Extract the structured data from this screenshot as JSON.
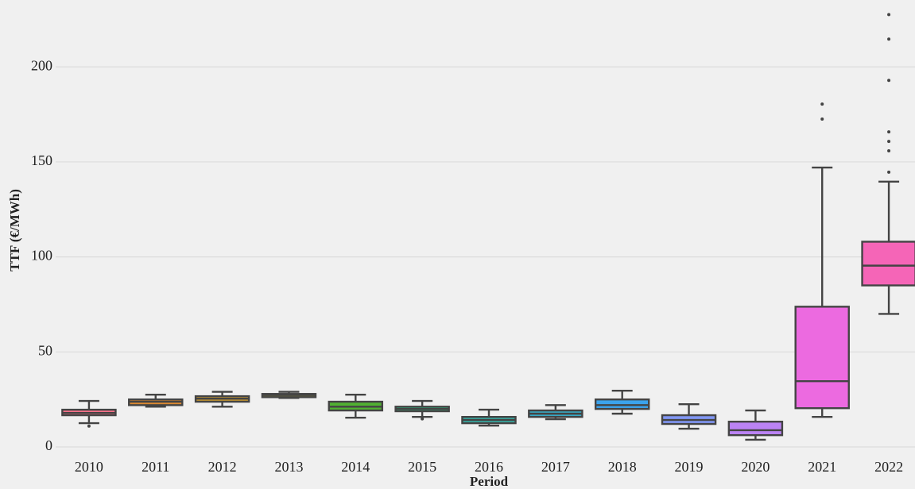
{
  "chart_data": {
    "type": "box",
    "xlabel": "Period",
    "ylabel": "TTF (€/MWh)",
    "categories": [
      "2010",
      "2011",
      "2012",
      "2013",
      "2014",
      "2015",
      "2016",
      "2017",
      "2018",
      "2019",
      "2020",
      "2021",
      "2022"
    ],
    "colors": [
      "#f77189",
      "#dc8932",
      "#c39532",
      "#a39d32",
      "#50b131",
      "#33b07a",
      "#36ada4",
      "#38a9c5",
      "#3ba3ec",
      "#8197f4",
      "#bb83f4",
      "#ec6ae0",
      "#f565b7"
    ],
    "boxes": [
      {
        "whislo": 12.5,
        "q1": 16.7,
        "median": 17.9,
        "q3": 19.6,
        "whishi": 24.2,
        "fliers": [
          11
        ]
      },
      {
        "whislo": 21.2,
        "q1": 22,
        "median": 23.8,
        "q3": 25,
        "whishi": 27.5,
        "fliers": []
      },
      {
        "whislo": 21.2,
        "q1": 23.8,
        "median": 25.4,
        "q3": 26.7,
        "whishi": 29,
        "fliers": []
      },
      {
        "whislo": 25.8,
        "q1": 26.2,
        "median": 27.3,
        "q3": 27.9,
        "whishi": 29,
        "fliers": []
      },
      {
        "whislo": 15.4,
        "q1": 19.2,
        "median": 21.2,
        "q3": 23.8,
        "whishi": 27.5,
        "fliers": []
      },
      {
        "whislo": 15.8,
        "q1": 18.8,
        "median": 20,
        "q3": 21.2,
        "whishi": 24.2,
        "fliers": [
          14.8
        ]
      },
      {
        "whislo": 11.2,
        "q1": 12.5,
        "median": 14.2,
        "q3": 15.8,
        "whishi": 19.6,
        "fliers": []
      },
      {
        "whislo": 14.6,
        "q1": 15.8,
        "median": 17.5,
        "q3": 19.2,
        "whishi": 22,
        "fliers": []
      },
      {
        "whislo": 17.5,
        "q1": 20,
        "median": 22,
        "q3": 25,
        "whishi": 29.6,
        "fliers": []
      },
      {
        "whislo": 9.6,
        "q1": 12.1,
        "median": 14.2,
        "q3": 16.7,
        "whishi": 22.5,
        "fliers": []
      },
      {
        "whislo": 3.8,
        "q1": 6.2,
        "median": 8.8,
        "q3": 13.3,
        "whishi": 19.2,
        "fliers": []
      },
      {
        "whislo": 15.8,
        "q1": 20.4,
        "median": 34.6,
        "q3": 73.8,
        "whishi": 147,
        "fliers": [
          172.5,
          180.4
        ]
      },
      {
        "whislo": 70,
        "q1": 85,
        "median": 95.4,
        "q3": 108,
        "whishi": 139.6,
        "fliers": [
          144.6,
          155.8,
          160.8,
          165.8,
          192.9,
          214.6,
          227.5
        ]
      }
    ],
    "ylim": [
      -5,
      231
    ],
    "yticks": [
      0,
      50,
      100,
      150,
      200
    ],
    "grid": true
  }
}
